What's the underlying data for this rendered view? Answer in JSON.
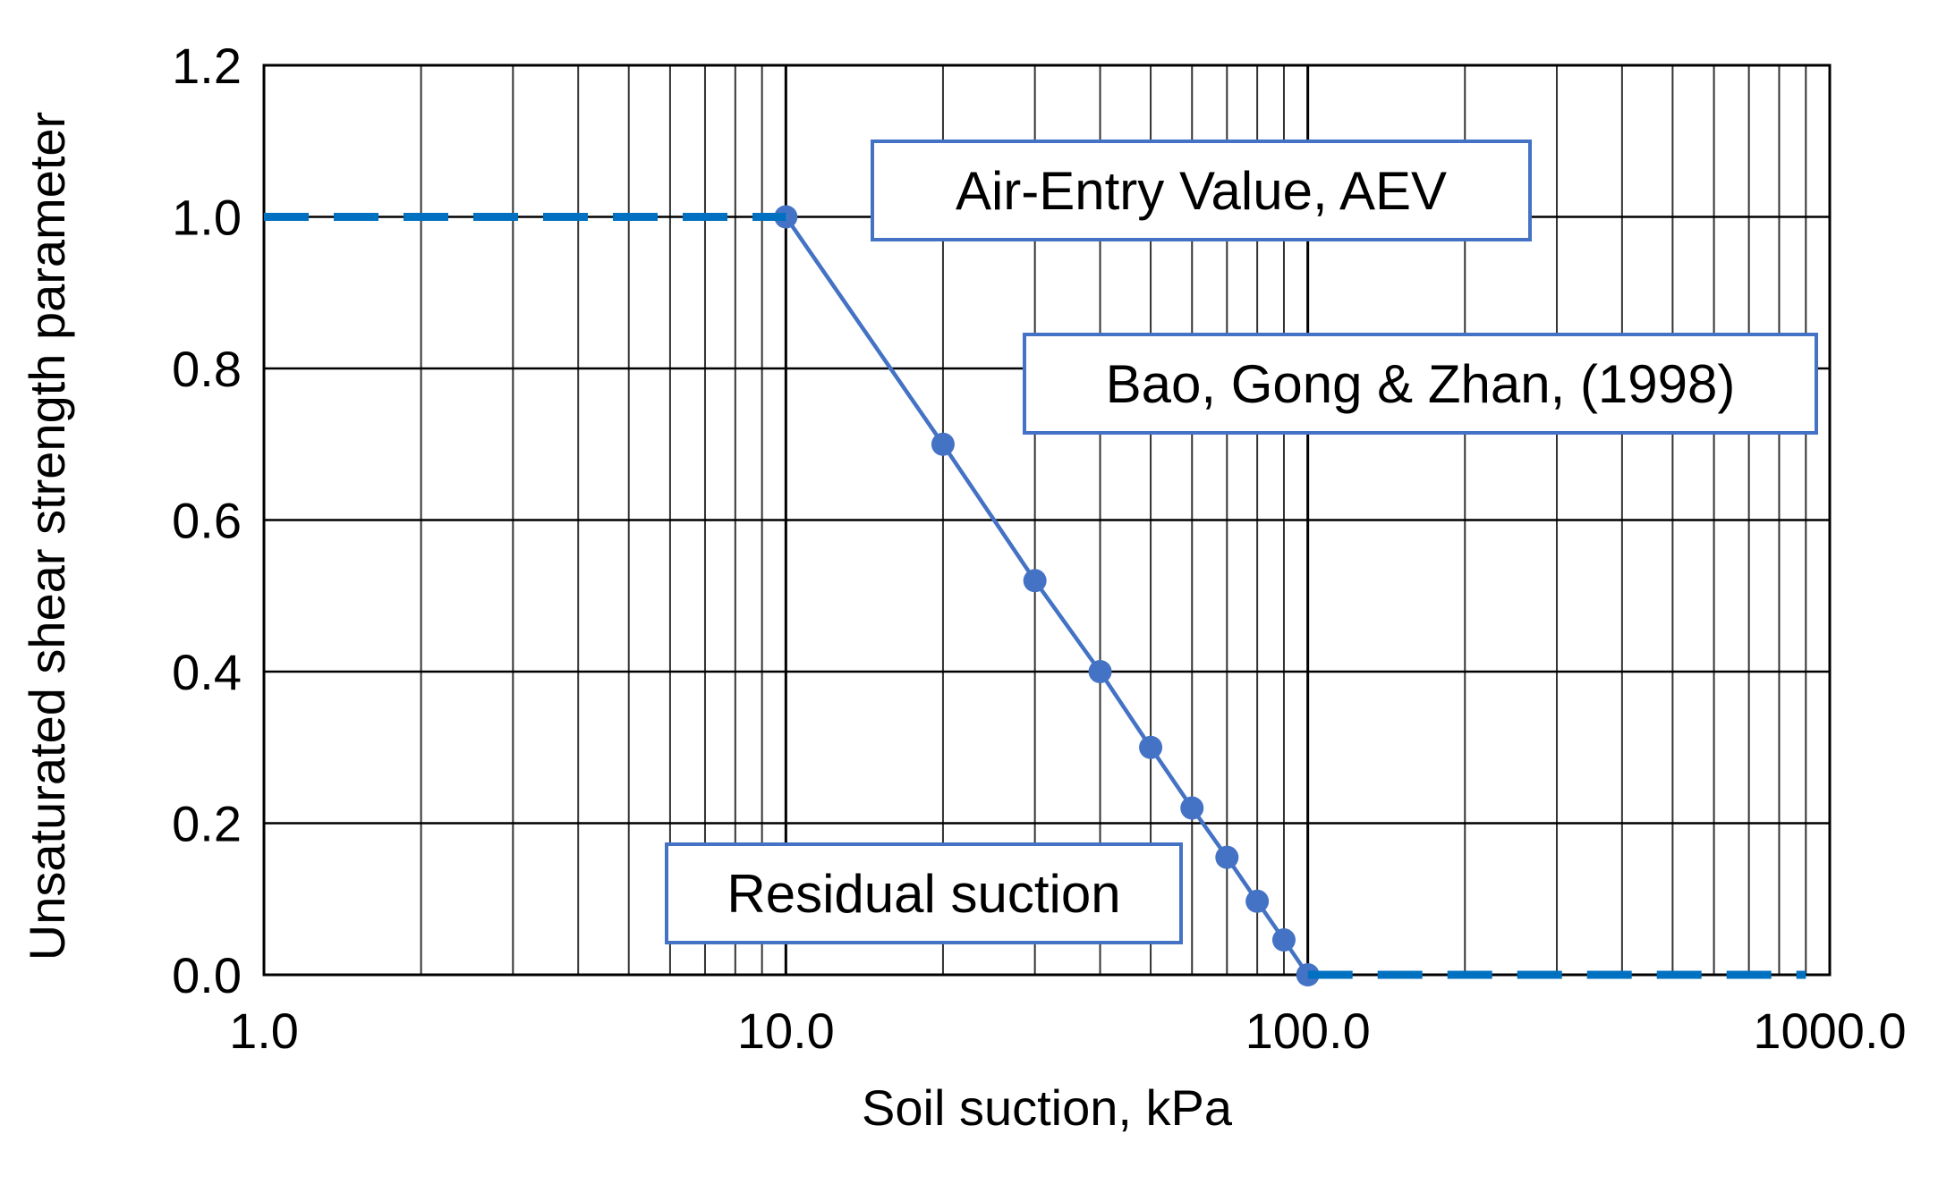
{
  "chart_data": {
    "type": "line",
    "title": "",
    "xlabel": "Soil suction, kPa",
    "ylabel": "Unsaturated shear strength parameter",
    "xscale": "log",
    "xlim": [
      1,
      1000
    ],
    "ylim": [
      0,
      1.2
    ],
    "x_ticks": [
      "1.0",
      "10.0",
      "100.0",
      "1000.0"
    ],
    "y_ticks": [
      "0.0",
      "0.2",
      "0.4",
      "0.6",
      "0.8",
      "1.0",
      "1.2"
    ],
    "grid": true,
    "series": [
      {
        "style": "solid-with-markers",
        "color": "#4472c4",
        "points": [
          [
            10,
            1.0
          ],
          [
            20,
            0.7
          ],
          [
            30,
            0.52
          ],
          [
            40,
            0.4
          ],
          [
            50,
            0.3
          ],
          [
            60,
            0.22
          ],
          [
            70,
            0.155
          ],
          [
            80,
            0.097
          ],
          [
            90,
            0.046
          ],
          [
            100,
            0.0
          ]
        ]
      },
      {
        "style": "dashed",
        "color": "#0070c0",
        "points": [
          [
            1,
            1.0
          ],
          [
            10,
            1.0
          ]
        ]
      },
      {
        "style": "dashed",
        "color": "#0070c0",
        "points": [
          [
            100,
            0.0
          ],
          [
            900,
            0.0
          ]
        ]
      }
    ],
    "annotations": [
      {
        "key": "aev",
        "text": "Air-Entry Value, AEV"
      },
      {
        "key": "model",
        "text": "Bao, Gong & Zhan, (1998)"
      },
      {
        "key": "residual",
        "text": "Residual suction"
      }
    ]
  }
}
